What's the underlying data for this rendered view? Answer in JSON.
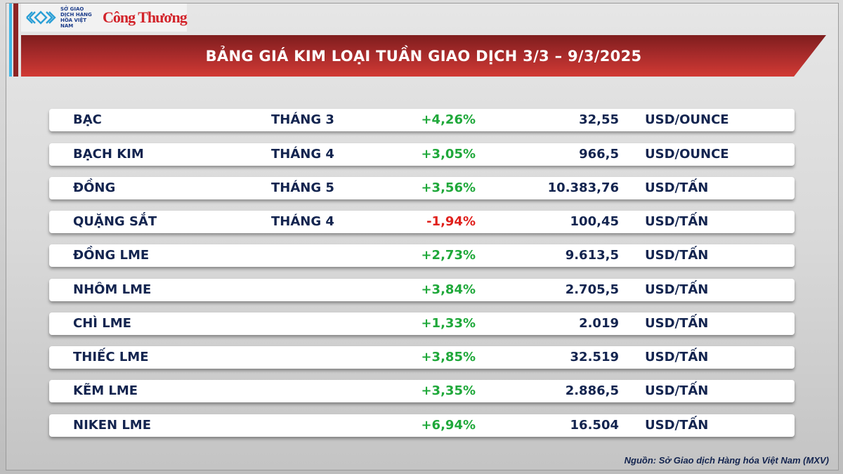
{
  "header": {
    "logo_mxv": "SỞ GIAO DỊCH HÀNG HÓA VIỆT NAM",
    "logo_ct": "Công Thương",
    "title": "BẢNG GIÁ KIM LOẠI TUẦN GIAO DỊCH 3/3 – 9/3/2025"
  },
  "colors": {
    "up": "#1fa83a",
    "down": "#e0201c",
    "banner": "#a52a2a",
    "text": "#13244f"
  },
  "rows": [
    {
      "name": "BẠC",
      "month": "THÁNG 3",
      "change": "+4,26%",
      "price": "32,55",
      "unit": "USD/OUNCE",
      "dir": "up"
    },
    {
      "name": "BẠCH KIM",
      "month": "THÁNG 4",
      "change": "+3,05%",
      "price": "966,5",
      "unit": "USD/OUNCE",
      "dir": "up"
    },
    {
      "name": "ĐỒNG",
      "month": "THÁNG 5",
      "change": "+3,56%",
      "price": "10.383,76",
      "unit": "USD/TẤN",
      "dir": "up"
    },
    {
      "name": "QUẶNG SẮT",
      "month": "THÁNG 4",
      "change": "-1,94%",
      "price": "100,45",
      "unit": "USD/TẤN",
      "dir": "down"
    },
    {
      "name": "ĐỒNG LME",
      "month": "",
      "change": "+2,73%",
      "price": "9.613,5",
      "unit": "USD/TẤN",
      "dir": "up"
    },
    {
      "name": "NHÔM LME",
      "month": "",
      "change": "+3,84%",
      "price": "2.705,5",
      "unit": "USD/TẤN",
      "dir": "up"
    },
    {
      "name": "CHÌ LME",
      "month": "",
      "change": "+1,33%",
      "price": "2.019",
      "unit": "USD/TẤN",
      "dir": "up"
    },
    {
      "name": "THIẾC LME",
      "month": "",
      "change": "+3,85%",
      "price": "32.519",
      "unit": "USD/TẤN",
      "dir": "up"
    },
    {
      "name": "KẼM LME",
      "month": "",
      "change": "+3,35%",
      "price": "2.886,5",
      "unit": "USD/TẤN",
      "dir": "up"
    },
    {
      "name": "NIKEN LME",
      "month": "",
      "change": "+6,94%",
      "price": "16.504",
      "unit": "USD/TẤN",
      "dir": "up"
    }
  ],
  "footer": {
    "source": "Nguồn: Sở Giao dịch Hàng hóa Việt Nam (MXV)"
  }
}
